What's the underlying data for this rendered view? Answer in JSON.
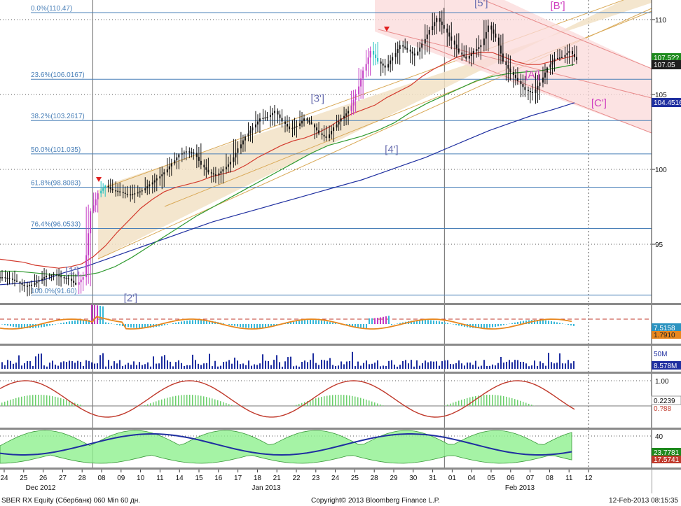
{
  "chart_data": {
    "type": "candlestick",
    "security": "SBER RX Equity (Сбербанк) 060 Min 60 дн.",
    "copyright": "Copyright© 2013 Bloomberg Finance L.P.",
    "timestamp": "12-Feb-2013 08:15:35",
    "month_labels": [
      "Dec 2012",
      "Jan 2013",
      "Feb 2013"
    ],
    "x_ticks": [
      "24",
      "25",
      "26",
      "27",
      "28",
      "08",
      "09",
      "10",
      "11",
      "14",
      "15",
      "16",
      "17",
      "18",
      "21",
      "22",
      "23",
      "24",
      "25",
      "28",
      "29",
      "30",
      "31",
      "01",
      "04",
      "05",
      "06",
      "07",
      "08",
      "11",
      "12"
    ],
    "price_axis": {
      "ylim": [
        90,
        112
      ],
      "ticks": [
        95,
        100,
        105,
        110
      ],
      "last_price": "107.05",
      "ma_value": "104.4516",
      "ma_value_hidden": "107.5??"
    },
    "fib_levels": [
      {
        "label": "0.0%(110.47)",
        "price": 110.47
      },
      {
        "label": "23.6%(106.0167)",
        "price": 106.0167
      },
      {
        "label": "38.2%(103.2617)",
        "price": 103.2617
      },
      {
        "label": "50.0%(101.035)",
        "price": 101.035
      },
      {
        "label": "61.8%(98.8083)",
        "price": 98.8083
      },
      {
        "label": "76.4%(96.0533)",
        "price": 96.0533
      },
      {
        "label": "100.0%(91.60)",
        "price": 91.6
      }
    ],
    "wave_labels": [
      {
        "text": "[1']",
        "x": 1.7,
        "price": 93.0,
        "color": "#6a6fb0"
      },
      {
        "text": "[2']",
        "x": 4.7,
        "price": 91.2,
        "color": "#6a6fb0"
      },
      {
        "text": "[3']",
        "x": 14.3,
        "price": 104.5,
        "color": "#6a6fb0"
      },
      {
        "text": "[4']",
        "x": 18.1,
        "price": 101.1,
        "color": "#6a6fb0"
      },
      {
        "text": "[5']",
        "x": 22.7,
        "price": 110.9,
        "color": "#6a6fb0"
      },
      {
        "text": "[A']",
        "x": 25.3,
        "price": 106.1,
        "color": "#d040c0"
      },
      {
        "text": "[B']",
        "x": 26.6,
        "price": 110.7,
        "color": "#d040c0"
      },
      {
        "text": "[C']",
        "x": 28.7,
        "price": 104.2,
        "color": "#d040c0"
      }
    ],
    "close_series": [
      92.8,
      92.7,
      92.5,
      92.2,
      92.3,
      92.6,
      92.9,
      93.0,
      92.8,
      92.7,
      92.3,
      92.8,
      97.2,
      98.4,
      98.9,
      98.6,
      98.5,
      98.3,
      98.4,
      98.6,
      99.0,
      99.4,
      99.8,
      100.4,
      101.0,
      101.2,
      101.1,
      100.3,
      99.8,
      99.6,
      100.0,
      100.5,
      101.4,
      102.2,
      102.8,
      103.4,
      103.5,
      103.9,
      103.2,
      102.7,
      102.9,
      103.4,
      103.0,
      102.4,
      102.1,
      102.8,
      103.4,
      103.9,
      105.0,
      106.6,
      107.9,
      107.2,
      106.8,
      107.5,
      108.3,
      108.0,
      107.6,
      108.4,
      109.3,
      110.1,
      109.4,
      108.6,
      107.8,
      107.4,
      107.9,
      108.3,
      109.6,
      108.8,
      107.2,
      106.5,
      105.9,
      105.3,
      105.1,
      105.8,
      106.8,
      107.4,
      107.5,
      107.9,
      107.3
    ],
    "ma_red": [
      94.0,
      93.9,
      93.8,
      93.6,
      93.5,
      93.4,
      93.5,
      93.7,
      94.2,
      94.9,
      95.8,
      96.6,
      97.4,
      98.0,
      98.5,
      98.8,
      99.0,
      99.2,
      99.5,
      99.7,
      99.9,
      100.3,
      100.8,
      101.2,
      101.6,
      101.9,
      102.1,
      102.4,
      102.8,
      103.3,
      103.7,
      104.0,
      104.3,
      104.8,
      105.2,
      105.6,
      106.2,
      106.7,
      107.1,
      107.5,
      107.7,
      107.8,
      107.8,
      107.5,
      107.2,
      107.0,
      107.0,
      107.2,
      107.4,
      107.6
    ],
    "ma_green": [
      93.2,
      93.2,
      93.1,
      93.0,
      92.9,
      92.9,
      93.1,
      93.5,
      94.1,
      94.8,
      95.5,
      96.2,
      96.9,
      97.5,
      98.1,
      98.7,
      99.3,
      99.9,
      100.5,
      101.1,
      101.6,
      101.9,
      102.2,
      102.6,
      103.1,
      103.8,
      104.4,
      104.9,
      105.4,
      105.9,
      106.2,
      106.4,
      106.5,
      106.6,
      106.8,
      107.0
    ],
    "ma_blue": [
      92.3,
      92.4,
      92.6,
      93.1,
      93.5,
      94.0,
      94.5,
      95.0,
      95.5,
      96.0,
      96.5,
      96.9,
      97.3,
      97.7,
      98.1,
      98.5,
      98.9,
      99.3,
      99.8,
      100.3,
      100.8,
      101.4,
      102.0,
      102.6,
      103.1,
      103.6,
      104.0,
      104.45
    ],
    "panels": {
      "macd": {
        "value_a": "7.5158",
        "value_b": "1.7910"
      },
      "volume": {
        "scale_label": "50M",
        "value": "8.578M"
      },
      "stochastic": {
        "tick": "1.00",
        "value_a": "0.2239",
        "value_b": "0.?88"
      },
      "dmi": {
        "tick": "40",
        "value_a": "23.7781",
        "value_b": "17.5741"
      }
    }
  },
  "colors": {
    "fib_line": "#4a80b8",
    "fib_text": "#4a80b8",
    "channel_up_fill": "#f2e2c6",
    "channel_up_line": "#d9a957",
    "channel_down_fill": "#fbd9d9",
    "channel_down_line": "#e88c8c",
    "ma_red": "#d33b2e",
    "ma_green": "#2f9a2f",
    "ma_blue": "#1f2fa0",
    "candle": "#111111",
    "panel_sep": "#8a8a8a",
    "last_price_bg": "#1f1f1f",
    "ma_blue_bg": "#1f2fa0",
    "green_bg": "#1d8a1d"
  }
}
